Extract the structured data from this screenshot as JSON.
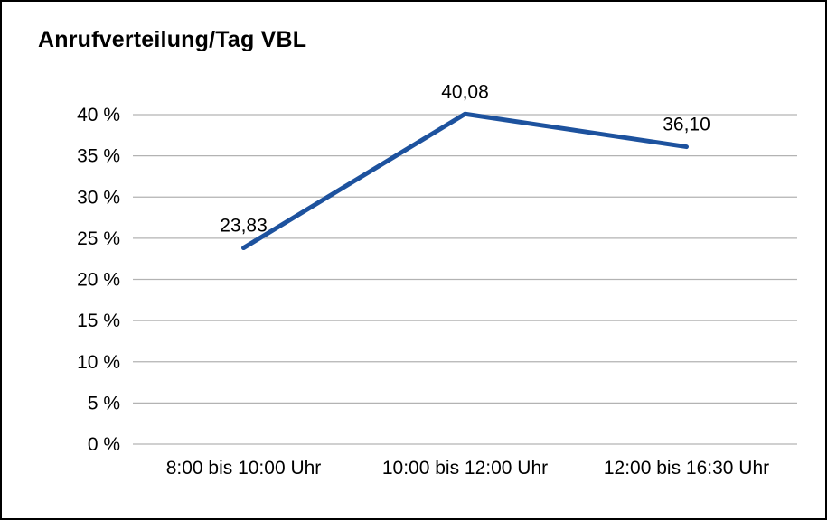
{
  "chart_data": {
    "type": "line",
    "title": "Anrufverteilung/Tag VBL",
    "categories": [
      "8:00 bis 10:00 Uhr",
      "10:00 bis 12:00 Uhr",
      "12:00 bis 16:30 Uhr"
    ],
    "values": [
      23.83,
      40.08,
      36.1
    ],
    "data_labels": [
      "23,83",
      "40,08",
      "36,10"
    ],
    "xlabel": "",
    "ylabel": "",
    "ylim": [
      0,
      40
    ],
    "y_tick_step": 5,
    "y_tick_labels": [
      "0 %",
      "5 %",
      "10 %",
      "15 %",
      "20 %",
      "25 %",
      "30 %",
      "35 %",
      "40 %"
    ],
    "grid": true,
    "legend": "none",
    "line_color": "#1d529e",
    "gridline_color": "#b3b3b3",
    "text_color": "#000000",
    "background": "#ffffff"
  }
}
